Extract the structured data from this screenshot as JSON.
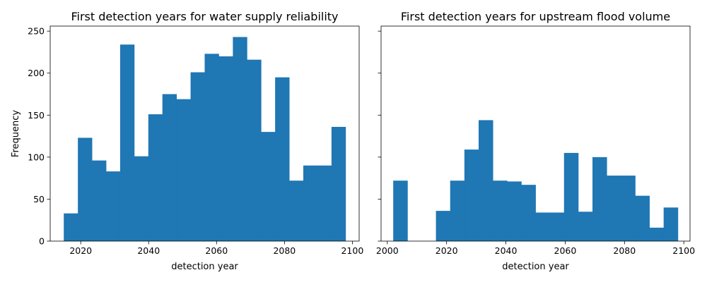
{
  "bar_color": "#1f77b4",
  "ylabel": "Frequency",
  "shared_yticks": [
    0,
    50,
    100,
    150,
    200,
    250
  ],
  "ylim": [
    0,
    256
  ],
  "chart_data": [
    {
      "type": "bar",
      "title": "First detection years for water supply reliability",
      "xlabel": "detection year",
      "ylabel": "Frequency",
      "xlim": [
        2011,
        2102
      ],
      "ylim": [
        0,
        256
      ],
      "xticks": [
        2020,
        2040,
        2060,
        2080,
        2100
      ],
      "bin_edges": [
        2015,
        2019.15,
        2023.3,
        2027.45,
        2031.6,
        2035.75,
        2039.9,
        2044.05,
        2048.2,
        2052.35,
        2056.5,
        2060.65,
        2064.8,
        2068.95,
        2073.1,
        2077.25,
        2081.4,
        2085.55,
        2089.7,
        2093.85,
        2098
      ],
      "values": [
        33,
        123,
        96,
        83,
        234,
        101,
        151,
        175,
        169,
        201,
        223,
        220,
        243,
        216,
        130,
        195,
        72,
        90,
        90,
        136
      ]
    },
    {
      "type": "bar",
      "title": "First detection years for upstream flood volume",
      "xlabel": "detection year",
      "ylabel": "",
      "xlim": [
        1997.9,
        2102.1
      ],
      "ylim": [
        0,
        256
      ],
      "xticks": [
        2000,
        2020,
        2040,
        2060,
        2080,
        2100
      ],
      "bin_edges": [
        2002,
        2006.8,
        2011.6,
        2016.4,
        2021.2,
        2026,
        2030.8,
        2035.6,
        2040.4,
        2045.2,
        2050,
        2054.8,
        2059.6,
        2064.4,
        2069.2,
        2074,
        2078.8,
        2083.6,
        2088.4,
        2093.2,
        2098
      ],
      "values": [
        72,
        0,
        0,
        36,
        72,
        109,
        144,
        72,
        71,
        67,
        34,
        34,
        105,
        35,
        100,
        78,
        78,
        54,
        16,
        40
      ]
    }
  ]
}
